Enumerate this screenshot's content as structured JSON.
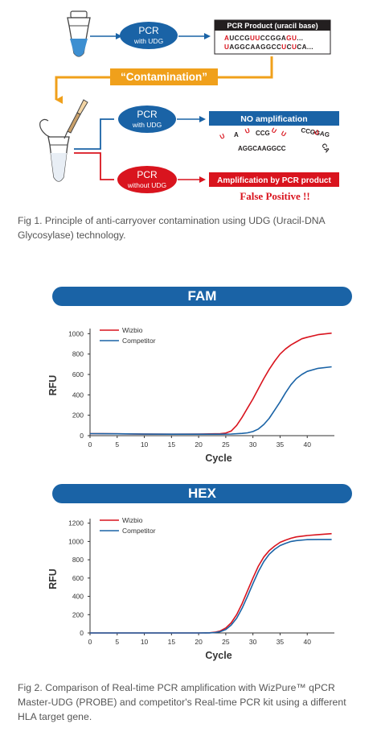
{
  "diagram": {
    "pcr_with_udg_1": {
      "title": "PCR",
      "sub": "with UDG"
    },
    "product_box": {
      "title": "PCR Product (uracil base)",
      "seq1": [
        [
          "A",
          "u"
        ],
        [
          "UCCG",
          ""
        ],
        [
          "UU",
          "u"
        ],
        [
          "CCGGA",
          ""
        ],
        [
          "G",
          "u"
        ],
        [
          "U",
          "u"
        ],
        [
          "...",
          ""
        ]
      ],
      "seq2": [
        [
          "U",
          "u"
        ],
        [
          "AGGCAAGGCC",
          ""
        ],
        [
          "U",
          "u"
        ],
        [
          "C",
          ""
        ],
        [
          "U",
          "u"
        ],
        [
          "CA...",
          ""
        ]
      ]
    },
    "contamination": "“Contamination”",
    "pcr_with_udg_2": {
      "title": "PCR",
      "sub": "with UDG"
    },
    "no_amp": {
      "title": "NO amplification",
      "fragments": [
        {
          "t": "U",
          "u": true
        },
        {
          "t": "A",
          "u": false
        },
        {
          "t": "U",
          "u": true
        },
        {
          "t": "CCG",
          "u": false
        },
        {
          "t": "U",
          "u": true
        },
        {
          "t": "U",
          "u": true
        },
        {
          "t": "CCGGAG",
          "u": false
        },
        {
          "t": "U",
          "u": true
        },
        {
          "t": "CA",
          "u": false
        },
        {
          "t": "AGGCAAGGCC",
          "u": false
        }
      ]
    },
    "pcr_without_udg": {
      "title": "PCR",
      "sub": "without UDG"
    },
    "amp_by_product": "Amplification by PCR product",
    "false_positive": "False Positive !!"
  },
  "captions": {
    "fig1": "Fig 1. Principle of anti-carryover contamination using UDG (Uracil-DNA Glycosylase) technology.",
    "fig2": "Fig 2. Comparison of Real-time PCR amplification with WizPure™ qPCR Master-UDG (PROBE) and competitor's Real-time PCR kit using a different HLA target gene."
  },
  "colors": {
    "blue": "#1a63a6",
    "red": "#d9141e",
    "orange": "#f0a01b",
    "dark": "#231f20"
  },
  "chart_data": [
    {
      "type": "line",
      "title": "FAM",
      "xlabel": "Cycle",
      "ylabel": "RFU",
      "xlim": [
        0,
        45
      ],
      "ylim": [
        0,
        1050
      ],
      "xticks": [
        0,
        5,
        10,
        15,
        20,
        25,
        30,
        35,
        40
      ],
      "yticks": [
        0,
        200,
        400,
        600,
        800,
        1000
      ],
      "legend": "top-left",
      "grid": false,
      "series": [
        {
          "name": "Wizbio",
          "color": "#d9141e",
          "x": [
            0,
            5,
            10,
            15,
            20,
            22,
            24,
            25,
            26,
            27,
            28,
            29,
            30,
            31,
            32,
            33,
            34,
            35,
            36,
            37,
            38,
            39,
            40,
            42,
            44.5
          ],
          "y": [
            20,
            18,
            15,
            14,
            15,
            17,
            20,
            25,
            45,
            100,
            180,
            270,
            360,
            460,
            560,
            650,
            730,
            800,
            850,
            890,
            920,
            950,
            965,
            990,
            1005
          ]
        },
        {
          "name": "Competitor",
          "color": "#1a63a6",
          "x": [
            0,
            5,
            10,
            15,
            20,
            24,
            26,
            28,
            29,
            30,
            31,
            32,
            33,
            34,
            35,
            36,
            37,
            38,
            39,
            40,
            42,
            44.5
          ],
          "y": [
            20,
            18,
            15,
            14,
            14,
            14,
            16,
            22,
            28,
            40,
            65,
            110,
            170,
            250,
            330,
            420,
            500,
            560,
            600,
            630,
            660,
            675
          ]
        }
      ]
    },
    {
      "type": "line",
      "title": "HEX",
      "xlabel": "Cycle",
      "ylabel": "RFU",
      "xlim": [
        0,
        45
      ],
      "ylim": [
        0,
        1250
      ],
      "xticks": [
        0,
        5,
        10,
        15,
        20,
        25,
        30,
        35,
        40
      ],
      "yticks": [
        0,
        200,
        400,
        600,
        800,
        1000,
        1200
      ],
      "legend": "top-left",
      "grid": false,
      "series": [
        {
          "name": "Wizbio",
          "color": "#d9141e",
          "x": [
            0,
            5,
            10,
            15,
            20,
            22,
            23,
            24,
            25,
            26,
            27,
            28,
            29,
            30,
            31,
            32,
            33,
            34,
            35,
            36,
            37,
            38,
            40,
            42,
            44.5
          ],
          "y": [
            0,
            0,
            0,
            0,
            0,
            2,
            8,
            22,
            55,
            110,
            200,
            320,
            460,
            600,
            730,
            830,
            900,
            950,
            990,
            1015,
            1035,
            1050,
            1065,
            1075,
            1085
          ]
        },
        {
          "name": "Competitor",
          "color": "#1a63a6",
          "x": [
            0,
            5,
            10,
            15,
            20,
            22,
            23,
            24,
            25,
            26,
            27,
            28,
            29,
            30,
            31,
            32,
            33,
            34,
            35,
            36,
            37,
            38,
            40,
            42,
            44.5
          ],
          "y": [
            0,
            0,
            0,
            0,
            0,
            1,
            4,
            14,
            38,
            85,
            160,
            270,
            400,
            540,
            670,
            780,
            860,
            915,
            955,
            980,
            1000,
            1010,
            1020,
            1022,
            1022
          ]
        }
      ]
    }
  ]
}
